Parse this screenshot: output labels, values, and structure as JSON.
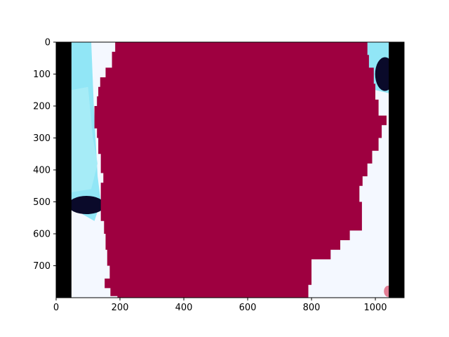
{
  "chart_data": {
    "type": "image",
    "title": "",
    "xlabel": "",
    "ylabel": "",
    "image_width": 1090,
    "image_height": 800,
    "xlim": [
      0,
      1090
    ],
    "ylim": [
      800,
      0
    ],
    "y_inverted": true,
    "grid": false,
    "xticks": [
      0,
      200,
      400,
      600,
      800,
      1000
    ],
    "yticks": [
      0,
      100,
      200,
      300,
      400,
      500,
      600,
      700
    ],
    "xtick_labels": [
      "0",
      "200",
      "400",
      "600",
      "800",
      "1000"
    ],
    "ytick_labels": [
      "0",
      "100",
      "200",
      "300",
      "400",
      "500",
      "600",
      "700"
    ],
    "black_border_x": [
      [
        0,
        48
      ],
      [
        1042,
        1090
      ]
    ],
    "mask_color": "#9e0040",
    "background_color": "#f4f8ff",
    "cyan_color": "#7fe3f5",
    "dark_color": "#0a0a2a",
    "mask_left_edge": [
      [
        0,
        185
      ],
      [
        30,
        175
      ],
      [
        80,
        155
      ],
      [
        110,
        138
      ],
      [
        140,
        132
      ],
      [
        170,
        128
      ],
      [
        200,
        120
      ],
      [
        270,
        128
      ],
      [
        300,
        132
      ],
      [
        350,
        140
      ],
      [
        410,
        148
      ],
      [
        440,
        140
      ],
      [
        560,
        150
      ],
      [
        600,
        155
      ],
      [
        650,
        160
      ],
      [
        700,
        168
      ],
      [
        740,
        152
      ],
      [
        770,
        170
      ],
      [
        795,
        192
      ],
      [
        800,
        210
      ]
    ],
    "mask_right_edge": [
      [
        0,
        975
      ],
      [
        40,
        980
      ],
      [
        80,
        995
      ],
      [
        130,
        1000
      ],
      [
        180,
        1010
      ],
      [
        230,
        1035
      ],
      [
        260,
        1020
      ],
      [
        300,
        1010
      ],
      [
        340,
        990
      ],
      [
        380,
        975
      ],
      [
        420,
        960
      ],
      [
        450,
        950
      ],
      [
        500,
        958
      ],
      [
        550,
        958
      ],
      [
        590,
        920
      ],
      [
        620,
        890
      ],
      [
        650,
        860
      ],
      [
        680,
        800
      ],
      [
        720,
        800
      ],
      [
        760,
        790
      ],
      [
        800,
        745
      ]
    ]
  }
}
